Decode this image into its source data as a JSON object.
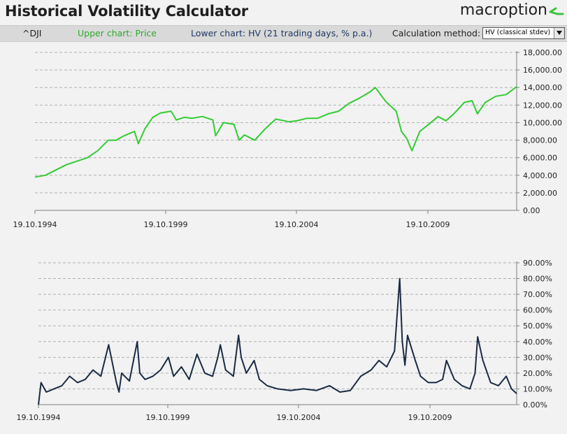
{
  "header": {
    "title": "Historical Volatility Calculator",
    "brand": "macroption",
    "brand_icon": "macroption-logo-icon"
  },
  "toolbar": {
    "ticker": "^DJI",
    "upper_chart": "Upper chart: Price",
    "lower_chart": "Lower chart: HV (21 trading days, % p.a.)",
    "method_label": "Calculation method:",
    "method_value": "HV (classical stdev)"
  },
  "colors": {
    "price_line": "#33cc33",
    "hv_line": "#1a2a45",
    "grid": "#b0b0b0"
  },
  "chart_data": [
    {
      "type": "line",
      "title": "",
      "xlabel": "",
      "ylabel": "",
      "x_ticks": [
        "19.10.1994",
        "19.10.1999",
        "19.10.2004",
        "19.10.2009"
      ],
      "y_ticks": [
        "0.00",
        "2,000.00",
        "4,000.00",
        "6,000.00",
        "8,000.00",
        "10,000.00",
        "12,000.00",
        "14,000.00",
        "16,000.00",
        "18,000.00"
      ],
      "ylim": [
        0,
        18000
      ],
      "xlim": [
        1994.8,
        2013.2
      ],
      "grid": true,
      "series": [
        {
          "x": [
            1994.8,
            1995.2,
            1995.6,
            1996.0,
            1996.4,
            1996.8,
            1997.2,
            1997.6,
            1997.9,
            1998.2,
            1998.6,
            1998.75,
            1999.0,
            1999.3,
            1999.6,
            2000.0,
            2000.2,
            2000.5,
            2000.8,
            2001.2,
            2001.6,
            2001.7,
            2002.0,
            2002.4,
            2002.6,
            2002.8,
            2003.2,
            2003.6,
            2004.0,
            2004.5,
            2004.8,
            2005.2,
            2005.6,
            2006.0,
            2006.4,
            2006.8,
            2007.2,
            2007.6,
            2007.8,
            2008.2,
            2008.6,
            2008.8,
            2009.0,
            2009.2,
            2009.5,
            2009.8,
            2010.2,
            2010.5,
            2010.8,
            2011.2,
            2011.5,
            2011.7,
            2012.0,
            2012.4,
            2012.8,
            2013.2
          ],
          "y": [
            3800,
            4000,
            4600,
            5200,
            5600,
            6000,
            6800,
            8000,
            8000,
            8500,
            9000,
            7600,
            9300,
            10600,
            11100,
            11300,
            10300,
            10600,
            10500,
            10700,
            10300,
            8500,
            10000,
            9800,
            8000,
            8600,
            8000,
            9300,
            10400,
            10100,
            10200,
            10500,
            10500,
            11000,
            11300,
            12200,
            12800,
            13500,
            14000,
            12400,
            11300,
            9000,
            8200,
            6800,
            9000,
            9700,
            10700,
            10200,
            11000,
            12300,
            12500,
            11000,
            12300,
            13000,
            13200,
            14100
          ]
        }
      ]
    },
    {
      "type": "line",
      "title": "",
      "xlabel": "",
      "ylabel": "",
      "x_ticks": [
        "19.10.1994",
        "19.10.1999",
        "19.10.2004",
        "19.10.2009"
      ],
      "y_ticks": [
        "0.00%",
        "10.00%",
        "20.00%",
        "30.00%",
        "40.00%",
        "50.00%",
        "60.00%",
        "70.00%",
        "80.00%",
        "90.00%"
      ],
      "ylim": [
        0,
        90
      ],
      "xlim": [
        1994.8,
        2013.2
      ],
      "grid": true,
      "series": [
        {
          "x": [
            1994.8,
            1994.9,
            1995.1,
            1995.4,
            1995.7,
            1996.0,
            1996.3,
            1996.6,
            1996.9,
            1997.2,
            1997.5,
            1997.8,
            1997.9,
            1998.0,
            1998.3,
            1998.6,
            1998.7,
            1998.9,
            1999.2,
            1999.5,
            1999.8,
            2000.0,
            2000.3,
            2000.6,
            2000.9,
            2001.2,
            2001.5,
            2001.7,
            2001.8,
            2002.0,
            2002.3,
            2002.5,
            2002.6,
            2002.8,
            2003.1,
            2003.3,
            2003.6,
            2004.0,
            2004.5,
            2005.0,
            2005.5,
            2006.0,
            2006.4,
            2006.8,
            2007.2,
            2007.6,
            2007.9,
            2008.2,
            2008.5,
            2008.7,
            2008.8,
            2008.9,
            2009.0,
            2009.3,
            2009.5,
            2009.8,
            2010.1,
            2010.35,
            2010.5,
            2010.8,
            2011.1,
            2011.4,
            2011.6,
            2011.7,
            2011.9,
            2012.2,
            2012.5,
            2012.8,
            2013.0,
            2013.2
          ],
          "y": [
            0,
            14,
            8,
            10,
            12,
            18,
            14,
            16,
            22,
            18,
            38,
            14,
            8,
            20,
            15,
            40,
            20,
            16,
            18,
            22,
            30,
            18,
            24,
            16,
            32,
            20,
            18,
            30,
            38,
            22,
            18,
            44,
            30,
            20,
            28,
            16,
            12,
            10,
            9,
            10,
            9,
            12,
            8,
            9,
            18,
            22,
            28,
            24,
            34,
            80,
            40,
            25,
            44,
            28,
            18,
            14,
            14,
            16,
            28,
            16,
            12,
            10,
            20,
            43,
            28,
            14,
            12,
            18,
            10,
            7
          ]
        }
      ]
    }
  ]
}
